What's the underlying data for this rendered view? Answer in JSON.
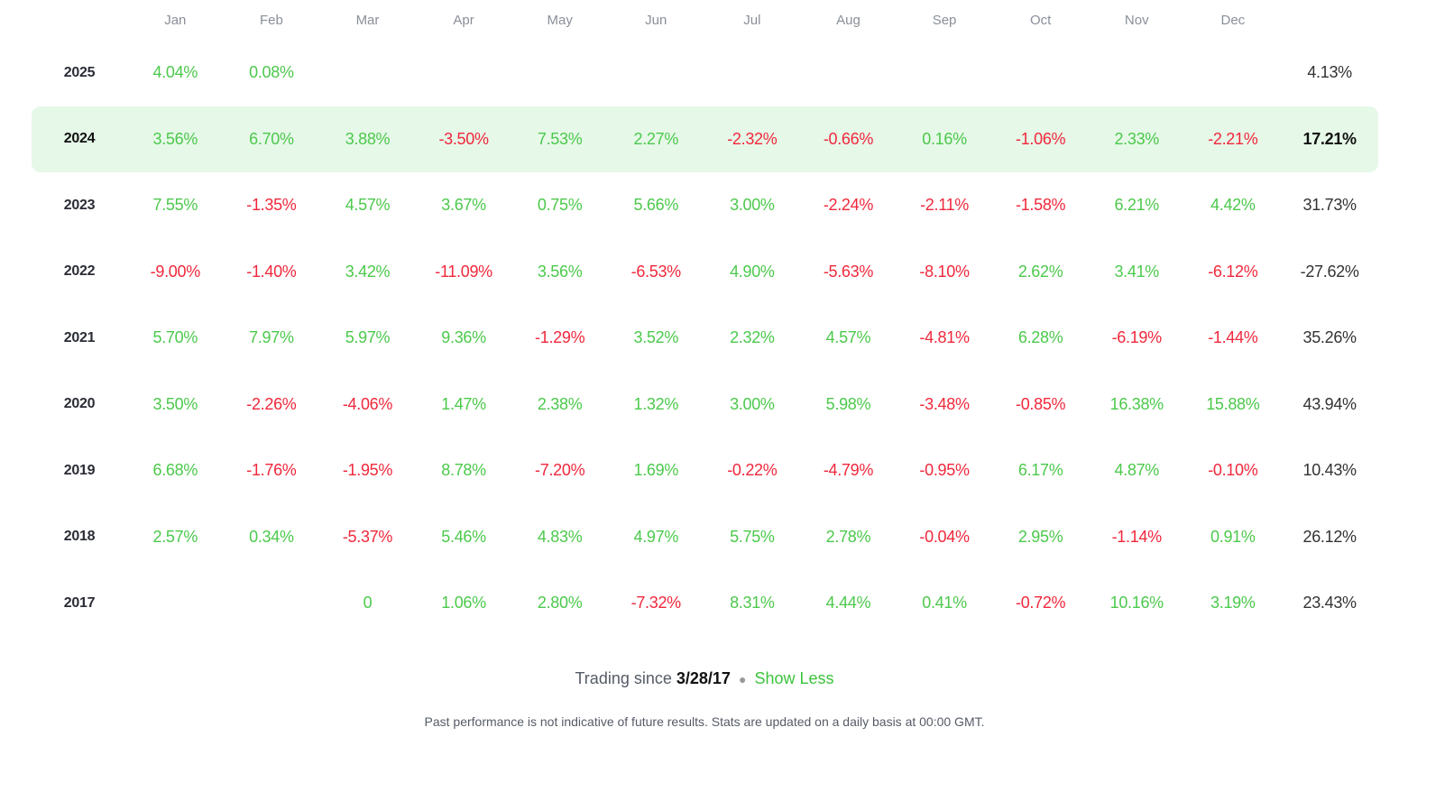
{
  "months": [
    "Jan",
    "Feb",
    "Mar",
    "Apr",
    "May",
    "Jun",
    "Jul",
    "Aug",
    "Sep",
    "Oct",
    "Nov",
    "Dec"
  ],
  "highlight_year": "2024",
  "colors": {
    "positive": "#4cc94c",
    "negative": "#f0283c",
    "highlight_bg": "#e6f8e8"
  },
  "rows": [
    {
      "year": "2025",
      "values": [
        "4.04%",
        "0.08%",
        null,
        null,
        null,
        null,
        null,
        null,
        null,
        null,
        null,
        null
      ],
      "total": "4.13%"
    },
    {
      "year": "2024",
      "values": [
        "3.56%",
        "6.70%",
        "3.88%",
        "-3.50%",
        "7.53%",
        "2.27%",
        "-2.32%",
        "-0.66%",
        "0.16%",
        "-1.06%",
        "2.33%",
        "-2.21%"
      ],
      "total": "17.21%"
    },
    {
      "year": "2023",
      "values": [
        "7.55%",
        "-1.35%",
        "4.57%",
        "3.67%",
        "0.75%",
        "5.66%",
        "3.00%",
        "-2.24%",
        "-2.11%",
        "-1.58%",
        "6.21%",
        "4.42%"
      ],
      "total": "31.73%"
    },
    {
      "year": "2022",
      "values": [
        "-9.00%",
        "-1.40%",
        "3.42%",
        "-11.09%",
        "3.56%",
        "-6.53%",
        "4.90%",
        "-5.63%",
        "-8.10%",
        "2.62%",
        "3.41%",
        "-6.12%"
      ],
      "total": "-27.62%"
    },
    {
      "year": "2021",
      "values": [
        "5.70%",
        "7.97%",
        "5.97%",
        "9.36%",
        "-1.29%",
        "3.52%",
        "2.32%",
        "4.57%",
        "-4.81%",
        "6.28%",
        "-6.19%",
        "-1.44%"
      ],
      "total": "35.26%"
    },
    {
      "year": "2020",
      "values": [
        "3.50%",
        "-2.26%",
        "-4.06%",
        "1.47%",
        "2.38%",
        "1.32%",
        "3.00%",
        "5.98%",
        "-3.48%",
        "-0.85%",
        "16.38%",
        "15.88%"
      ],
      "total": "43.94%"
    },
    {
      "year": "2019",
      "values": [
        "6.68%",
        "-1.76%",
        "-1.95%",
        "8.78%",
        "-7.20%",
        "1.69%",
        "-0.22%",
        "-4.79%",
        "-0.95%",
        "6.17%",
        "4.87%",
        "-0.10%"
      ],
      "total": "10.43%"
    },
    {
      "year": "2018",
      "values": [
        "2.57%",
        "0.34%",
        "-5.37%",
        "5.46%",
        "4.83%",
        "4.97%",
        "5.75%",
        "2.78%",
        "-0.04%",
        "2.95%",
        "-1.14%",
        "0.91%"
      ],
      "total": "26.12%"
    },
    {
      "year": "2017",
      "values": [
        null,
        null,
        "0",
        "1.06%",
        "2.80%",
        "-7.32%",
        "8.31%",
        "4.44%",
        "0.41%",
        "-0.72%",
        "10.16%",
        "3.19%"
      ],
      "total": "23.43%"
    }
  ],
  "footer": {
    "trading_since_label": "Trading since",
    "trading_since_date": "3/28/17",
    "show_less": "Show Less",
    "disclaimer": "Past performance is not indicative of future results. Stats are updated on a daily basis at 00:00 GMT."
  }
}
